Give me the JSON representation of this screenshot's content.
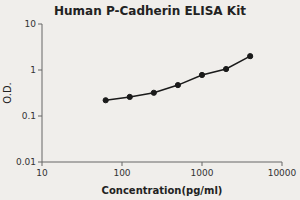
{
  "chart_data": {
    "type": "line",
    "title": "Human P-Cadherin ELISA Kit",
    "x_label": "Concentration(pg/ml)",
    "y_label": "O.D.",
    "x": [
      62.5,
      125,
      250,
      500,
      1000,
      2000,
      4000
    ],
    "values": [
      0.22,
      0.26,
      0.32,
      0.47,
      0.78,
      1.05,
      2.0
    ],
    "xlim": [
      10,
      10000
    ],
    "ylim": [
      0.01,
      10
    ],
    "xticks": [
      10,
      100,
      1000,
      10000
    ],
    "yticks": [
      0.01,
      0.1,
      1,
      10
    ],
    "log": true,
    "grid": false,
    "color": "#1a1a1a",
    "marker": "circle"
  }
}
